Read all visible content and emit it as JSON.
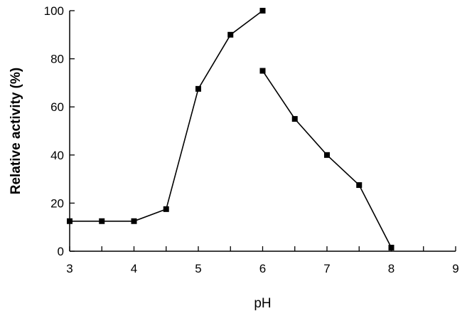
{
  "chart_data": {
    "type": "line",
    "title": "",
    "xlabel": "pH",
    "ylabel": "Relative activity (%)",
    "xlim": [
      3,
      9
    ],
    "ylim": [
      0,
      100
    ],
    "x_ticks": [
      "3",
      "4",
      "5",
      "6",
      "7",
      "8",
      "9"
    ],
    "y_ticks": [
      "0",
      "20",
      "40",
      "60",
      "80",
      "100"
    ],
    "grid": false,
    "legend": "none",
    "line_color": "#000000",
    "marker": "square",
    "series": [
      {
        "x": [
          3,
          3.5,
          4,
          4.5,
          5,
          5.5,
          6
        ],
        "y": [
          12.5,
          12.5,
          12.5,
          17.5,
          67.5,
          90,
          100
        ]
      },
      {
        "x": [
          6,
          6.5,
          7,
          7.5,
          8
        ],
        "y": [
          75,
          55,
          40,
          27.5,
          1.5
        ]
      }
    ]
  }
}
